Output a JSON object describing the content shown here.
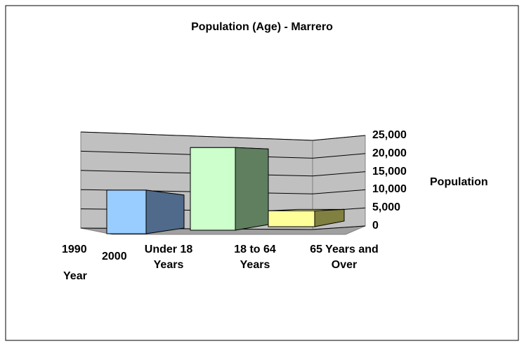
{
  "chart_data": {
    "type": "bar3d",
    "title": "Population (Age) - Marrero",
    "categories": [
      "Under 18 Years",
      "18 to 64 Years",
      "65 Years and Over"
    ],
    "values": [
      11500,
      21800,
      4200
    ],
    "colors": [
      "#99ccff",
      "#ccffcc",
      "#ffff99"
    ],
    "side_colors": [
      "#4f6a8a",
      "#5f7f5f",
      "#808040"
    ],
    "ylim": [
      0,
      25000
    ],
    "yticks": [
      0,
      {
        "value": 5000,
        "label": "5,000"
      },
      {
        "value": 10000,
        "label": "10,000"
      },
      {
        "value": 15000,
        "label": "15,000"
      },
      {
        "value": 20000,
        "label": "20,000"
      },
      {
        "value": 25000,
        "label": "25,000"
      }
    ],
    "y_label": "Population",
    "depth_categories": [
      "1990",
      "2000"
    ],
    "depth_label": "Year",
    "grid": true
  }
}
